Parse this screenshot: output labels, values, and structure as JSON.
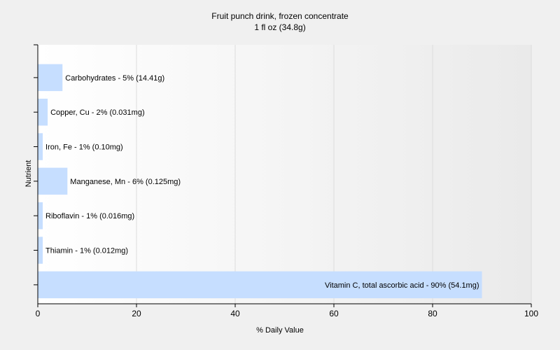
{
  "chart_data": {
    "type": "bar",
    "orientation": "horizontal",
    "title": "Fruit punch drink, frozen concentrate",
    "subtitle": "1 fl oz (34.8g)",
    "xlabel": "% Daily Value",
    "ylabel": "Nutrient",
    "xlim": [
      0,
      100
    ],
    "xticks": [
      0,
      20,
      40,
      60,
      80,
      100
    ],
    "grid": "vertical",
    "bar_color": "#c6deff",
    "categories": [
      "Carbohydrates",
      "Copper, Cu",
      "Iron, Fe",
      "Manganese, Mn",
      "Riboflavin",
      "Thiamin",
      "Vitamin C, total ascorbic acid"
    ],
    "values": [
      5,
      2,
      1,
      6,
      1,
      1,
      90
    ],
    "data_labels": [
      "Carbohydrates - 5% (14.41g)",
      "Copper, Cu - 2% (0.031mg)",
      "Iron, Fe - 1% (0.10mg)",
      "Manganese, Mn - 6% (0.125mg)",
      "Riboflavin - 1% (0.016mg)",
      "Thiamin - 1% (0.012mg)",
      "Vitamin C, total ascorbic acid - 90% (54.1mg)"
    ]
  }
}
